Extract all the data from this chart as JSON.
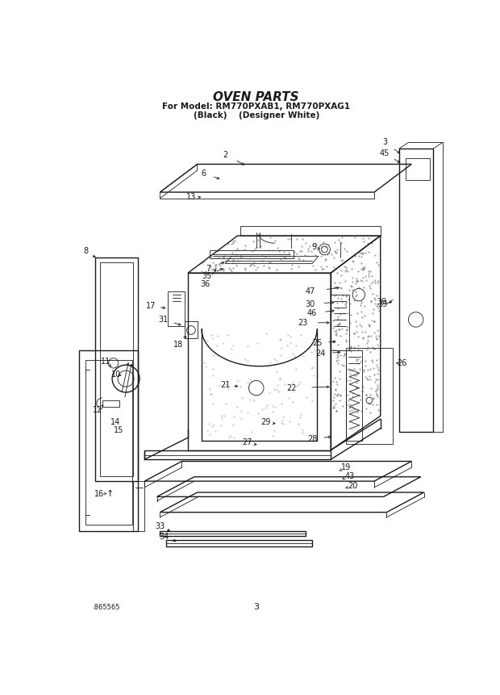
{
  "title": "OVEN PARTS",
  "subtitle1": "For Model: RM770PXAB1, RM770PXAG1",
  "subtitle2": "(Black)    (Designer White)",
  "page_number": "3",
  "doc_number": "865565",
  "background_color": "#ffffff",
  "line_color": "#1a1a1a"
}
